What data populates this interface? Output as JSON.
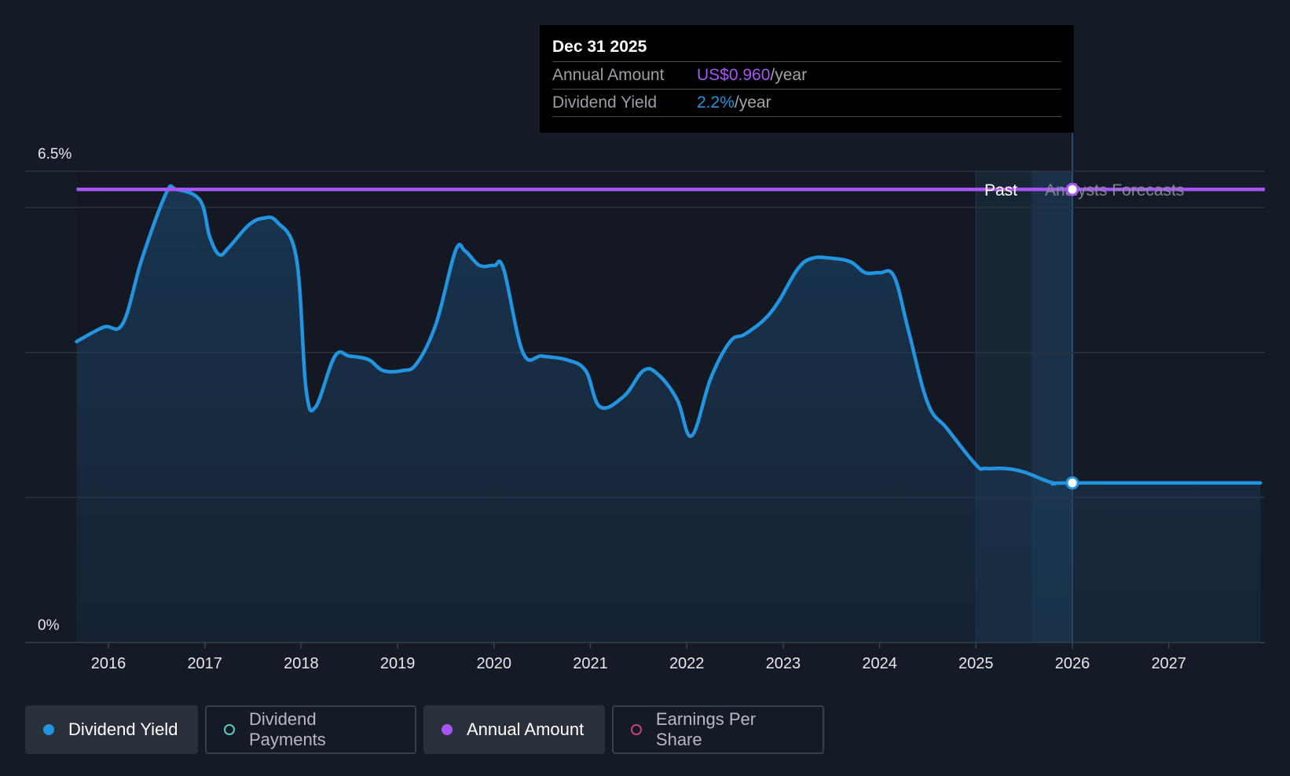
{
  "chart_data": {
    "type": "area",
    "y_axis": {
      "min": 0,
      "max": 6.5,
      "tick_labels": [
        "6.5%",
        "0%"
      ],
      "ticks": [
        6.5,
        0
      ]
    },
    "x_axis": {
      "min": 2015.0,
      "max": 2027.95,
      "tick_labels": [
        "2016",
        "2017",
        "2018",
        "2019",
        "2020",
        "2021",
        "2022",
        "2023",
        "2024",
        "2025",
        "2026",
        "2027"
      ]
    },
    "grid": true,
    "series": [
      {
        "name": "Dividend Yield",
        "color": "#2394df",
        "x": [
          2015.67,
          2015.95,
          2016.15,
          2016.35,
          2016.6,
          2016.7,
          2016.95,
          2017.05,
          2017.15,
          2017.25,
          2017.45,
          2017.6,
          2017.75,
          2017.95,
          2018.05,
          2018.15,
          2018.35,
          2018.5,
          2018.7,
          2018.85,
          2019.05,
          2019.2,
          2019.4,
          2019.6,
          2019.7,
          2019.85,
          2020.0,
          2020.1,
          2020.3,
          2020.5,
          2020.75,
          2020.95,
          2021.1,
          2021.35,
          2021.55,
          2021.7,
          2021.9,
          2022.05,
          2022.25,
          2022.45,
          2022.6,
          2022.8,
          2022.95,
          2023.15,
          2023.3,
          2023.5,
          2023.7,
          2023.85,
          2024.0,
          2024.15,
          2024.3,
          2024.5,
          2024.7,
          2025.0,
          2025.1,
          2025.3,
          2025.5,
          2025.8,
          2026.0,
          2027.95
        ],
        "y": [
          4.15,
          4.35,
          4.4,
          5.3,
          6.2,
          6.25,
          6.1,
          5.6,
          5.35,
          5.45,
          5.75,
          5.85,
          5.8,
          5.3,
          3.5,
          3.25,
          3.95,
          3.95,
          3.9,
          3.75,
          3.75,
          3.85,
          4.4,
          5.4,
          5.4,
          5.2,
          5.2,
          5.15,
          4.0,
          3.95,
          3.9,
          3.75,
          3.25,
          3.4,
          3.75,
          3.7,
          3.35,
          2.85,
          3.65,
          4.15,
          4.25,
          4.45,
          4.7,
          5.15,
          5.3,
          5.3,
          5.25,
          5.1,
          5.1,
          5.05,
          4.3,
          3.3,
          2.95,
          2.45,
          2.4,
          2.4,
          2.35,
          2.2,
          2.2,
          2.2
        ]
      },
      {
        "name": "Annual Amount",
        "color": "#a855f7",
        "x": [
          2015.67,
          2027.95
        ],
        "y": [
          6.25,
          6.25
        ]
      }
    ],
    "regions": {
      "past_label": "Past",
      "forecast_label": "Analysts Forecasts",
      "past_start": 2025.0,
      "divider": 2026.0
    },
    "highlight_x": 2026.0,
    "colors": {
      "background": "#151b26",
      "yield": "#2394df",
      "annual": "#a855f7",
      "grid": "#2c3340"
    }
  },
  "tooltip": {
    "date": "Dec 31 2025",
    "rows": [
      {
        "label": "Annual Amount",
        "value": "US$0.960",
        "unit": "/year",
        "color": "#a855f7"
      },
      {
        "label": "Dividend Yield",
        "value": "2.2%",
        "unit": "/year",
        "color": "#2394df"
      }
    ]
  },
  "legend": [
    {
      "label": "Dividend Yield",
      "color": "#2394df",
      "active": true
    },
    {
      "label": "Dividend Payments",
      "color": "#5fc8be",
      "active": false
    },
    {
      "label": "Annual Amount",
      "color": "#a855f7",
      "active": true
    },
    {
      "label": "Earnings Per Share",
      "color": "#c2427a",
      "active": false
    }
  ]
}
